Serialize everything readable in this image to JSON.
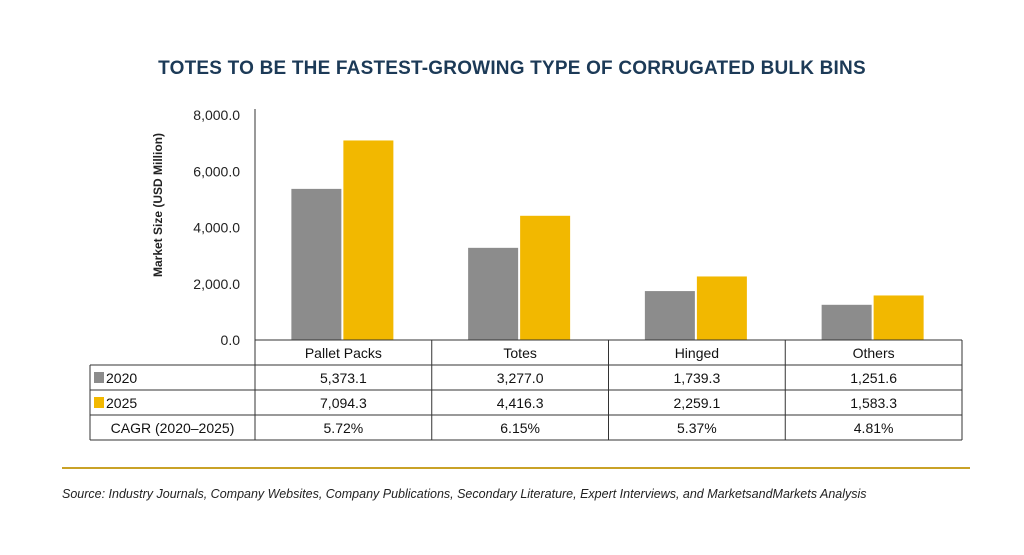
{
  "chart_data": {
    "type": "bar",
    "title": "TOTES TO BE THE FASTEST-GROWING TYPE OF CORRUGATED BULK BINS",
    "ylabel": "Market Size (USD Million)",
    "xlabel": "",
    "ylim": [
      0,
      8000
    ],
    "yticks": [
      "0.0",
      "2,000.0",
      "4,000.0",
      "6,000.0",
      "8,000.0"
    ],
    "categories": [
      "Pallet Packs",
      "Totes",
      "Hinged",
      "Others"
    ],
    "series": [
      {
        "name": "2020",
        "color": "#8c8c8c",
        "values": [
          5373.1,
          3277.0,
          1739.3,
          1251.6
        ],
        "labels": [
          "5,373.1",
          "3,277.0",
          "1,739.3",
          "1,251.6"
        ]
      },
      {
        "name": "2025",
        "color": "#f2b800",
        "values": [
          7094.3,
          4416.3,
          2259.1,
          1583.3
        ],
        "labels": [
          "7,094.3",
          "4,416.3",
          "2,259.1",
          "1,583.3"
        ]
      }
    ],
    "cagr_row": {
      "label": "CAGR (2020–2025)",
      "values": [
        "5.72%",
        "6.15%",
        "5.37%",
        "4.81%"
      ]
    },
    "grid": false,
    "legend": "table-rows"
  },
  "source": "Source: Industry Journals, Company Websites, Company Publications, Secondary Literature, Expert Interviews, and MarketsandMarkets Analysis",
  "rule_color": "#c9a227"
}
